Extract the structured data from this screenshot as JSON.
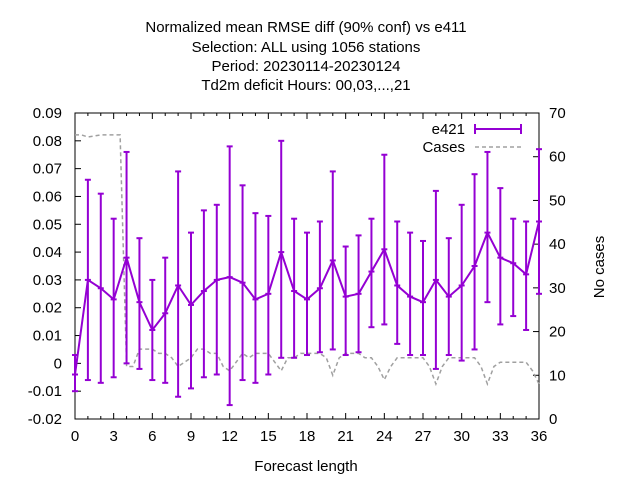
{
  "chart_data": {
    "type": "line",
    "title_lines": [
      "Normalized mean RMSE diff (90% conf) vs e411",
      "Selection: ALL using  1056 stations",
      "Period: 20230114-20230124",
      "Td2m deficit   Hours:  00,03,...,21"
    ],
    "xlabel": "Forecast length",
    "ylabel": "",
    "y2label": "No cases",
    "xlim": [
      0,
      36
    ],
    "ylim": [
      -0.02,
      0.09
    ],
    "y2lim": [
      0,
      70
    ],
    "xticks": [
      "0",
      "3",
      "6",
      "9",
      "12",
      "15",
      "18",
      "21",
      "24",
      "27",
      "30",
      "33",
      "36"
    ],
    "yticks": [
      "-0.02",
      "-0.01",
      "0",
      "0.01",
      "0.02",
      "0.03",
      "0.04",
      "0.05",
      "0.06",
      "0.07",
      "0.08",
      "0.09"
    ],
    "y2ticks": [
      "0",
      "10",
      "20",
      "30",
      "40",
      "50",
      "60",
      "70"
    ],
    "grid": false,
    "legend_position": "top-right",
    "series": [
      {
        "name": "e421",
        "color": "#9400d3",
        "x": [
          0,
          1,
          2,
          3,
          4,
          5,
          6,
          7,
          8,
          9,
          10,
          11,
          12,
          13,
          14,
          15,
          16,
          17,
          18,
          19,
          20,
          21,
          22,
          23,
          24,
          25,
          26,
          27,
          28,
          29,
          30,
          31,
          32,
          33,
          34,
          35,
          36
        ],
        "y": [
          -0.004,
          0.03,
          0.027,
          0.023,
          0.038,
          0.022,
          0.012,
          0.018,
          0.028,
          0.021,
          0.026,
          0.03,
          0.031,
          0.029,
          0.023,
          0.025,
          0.04,
          0.026,
          0.023,
          0.027,
          0.037,
          0.024,
          0.025,
          0.033,
          0.041,
          0.028,
          0.024,
          0.022,
          0.03,
          0.024,
          0.028,
          0.035,
          0.047,
          0.038,
          0.036,
          0.032,
          0.051
        ],
        "err_low": [
          -0.01,
          -0.006,
          -0.007,
          -0.005,
          0.0,
          -0.002,
          -0.006,
          -0.007,
          -0.012,
          -0.009,
          -0.005,
          -0.004,
          -0.015,
          -0.006,
          -0.007,
          -0.004,
          0.002,
          0.002,
          0.003,
          0.004,
          0.005,
          0.003,
          0.004,
          0.013,
          0.014,
          0.007,
          0.003,
          0.003,
          -0.002,
          0.003,
          0.001,
          0.005,
          0.022,
          0.014,
          0.017,
          0.012,
          0.025
        ],
        "err_high": [
          0.003,
          0.066,
          0.061,
          0.052,
          0.076,
          0.045,
          0.03,
          0.038,
          0.069,
          0.047,
          0.055,
          0.057,
          0.078,
          0.064,
          0.054,
          0.053,
          0.08,
          0.052,
          0.047,
          0.051,
          0.069,
          0.042,
          0.046,
          0.052,
          0.075,
          0.051,
          0.047,
          0.044,
          0.062,
          0.045,
          0.057,
          0.068,
          0.076,
          0.063,
          0.052,
          0.051,
          0.077
        ]
      },
      {
        "name": "Cases",
        "axis": "right",
        "color": "#a0a0a0",
        "dashed": true,
        "x": [
          0,
          0.5,
          1,
          2,
          3,
          3.5,
          4,
          4.5,
          5,
          5.5,
          6,
          6.5,
          7,
          7.5,
          8,
          8.5,
          9,
          9.5,
          10,
          10.5,
          11,
          11.5,
          12,
          12.5,
          13,
          13.5,
          14,
          14.5,
          15,
          15.5,
          16,
          16.5,
          17,
          17.5,
          18,
          18.5,
          19,
          19.5,
          20,
          20.5,
          21,
          21.5,
          22,
          22.5,
          23,
          23.5,
          24,
          24.5,
          25,
          25.5,
          26,
          26.5,
          27,
          27.5,
          28,
          28.5,
          29,
          29.5,
          30,
          30.5,
          31,
          31.5,
          32,
          32.5,
          33,
          33.5,
          34,
          34.5,
          35,
          35.5,
          36
        ],
        "y": [
          65,
          65,
          64.5,
          65,
          65,
          65,
          12,
          12,
          16,
          16,
          16,
          15,
          15,
          14,
          12,
          13,
          14,
          16,
          16,
          15,
          15,
          12,
          11,
          13,
          15,
          14,
          15,
          15,
          15,
          13,
          11,
          14,
          14,
          15,
          15,
          15,
          15,
          14,
          10,
          14,
          15,
          15,
          15,
          14,
          14,
          12,
          9,
          12,
          14,
          14,
          14,
          14,
          14,
          12,
          8,
          12,
          14,
          14,
          14,
          14,
          14,
          12,
          8,
          12,
          13,
          13,
          13,
          13,
          13,
          11,
          8
        ]
      }
    ]
  }
}
